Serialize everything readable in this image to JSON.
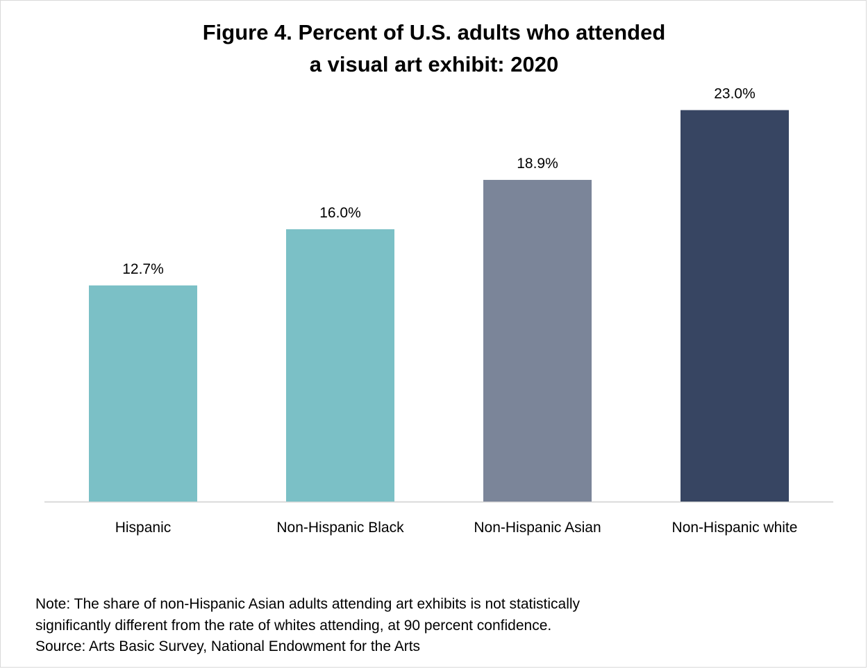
{
  "chart_data": {
    "type": "bar",
    "title_lines": [
      "Figure 4. Percent of U.S. adults who attended",
      "a visual art exhibit: 2020"
    ],
    "categories": [
      "Hispanic",
      "Non-Hispanic Black",
      "Non-Hispanic Asian",
      "Non-Hispanic white"
    ],
    "values": [
      12.7,
      16.0,
      18.9,
      23.0
    ],
    "data_labels": [
      "12.7%",
      "16.0%",
      "18.9%",
      "23.0%"
    ],
    "bar_colors": [
      "#7bc0c6",
      "#7bc0c6",
      "#7b8599",
      "#374562"
    ],
    "ylim": [
      0,
      25
    ],
    "grid": false,
    "legend": "none"
  },
  "notes": {
    "lines": [
      "Note: The share of non-Hispanic Asian adults attending art exhibits is not statistically",
      "significantly different from the rate of whites attending, at 90 percent confidence.",
      "Source: Arts Basic Survey, National Endowment for the Arts"
    ]
  }
}
